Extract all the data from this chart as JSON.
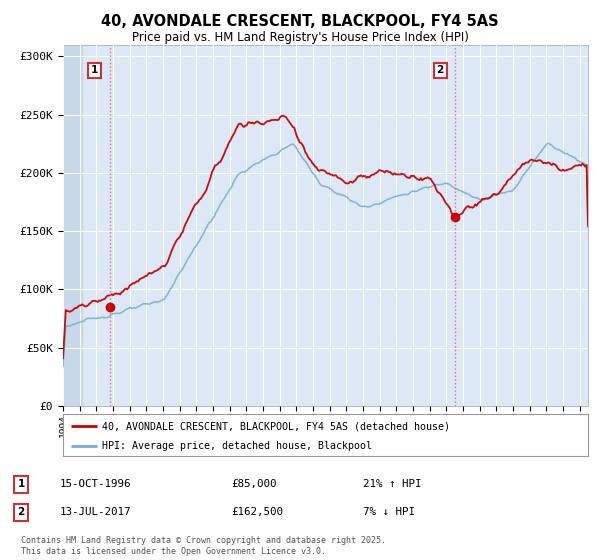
{
  "title": "40, AVONDALE CRESCENT, BLACKPOOL, FY4 5AS",
  "subtitle": "Price paid vs. HM Land Registry's House Price Index (HPI)",
  "ylabel_ticks": [
    "£0",
    "£50K",
    "£100K",
    "£150K",
    "£200K",
    "£250K",
    "£300K"
  ],
  "ytick_values": [
    0,
    50000,
    100000,
    150000,
    200000,
    250000,
    300000
  ],
  "ylim": [
    0,
    310000
  ],
  "xlim_start": 1994.0,
  "xlim_end": 2025.5,
  "red_color": "#cc0000",
  "blue_color": "#7aadcf",
  "dashed_red": "#e86060",
  "marker1_x": 1996.79,
  "marker1_y": 85000,
  "marker2_x": 2017.53,
  "marker2_y": 162500,
  "legend_label1": "40, AVONDALE CRESCENT, BLACKPOOL, FY4 5AS (detached house)",
  "legend_label2": "HPI: Average price, detached house, Blackpool",
  "sale1_date": "15-OCT-1996",
  "sale1_price": "£85,000",
  "sale1_hpi": "21% ↑ HPI",
  "sale2_date": "13-JUL-2017",
  "sale2_price": "£162,500",
  "sale2_hpi": "7% ↓ HPI",
  "footer": "Contains HM Land Registry data © Crown copyright and database right 2025.\nThis data is licensed under the Open Government Licence v3.0.",
  "bg_color": "#ffffff",
  "plot_bg_color": "#dce8f5",
  "hatch_region_end": 1995.2
}
